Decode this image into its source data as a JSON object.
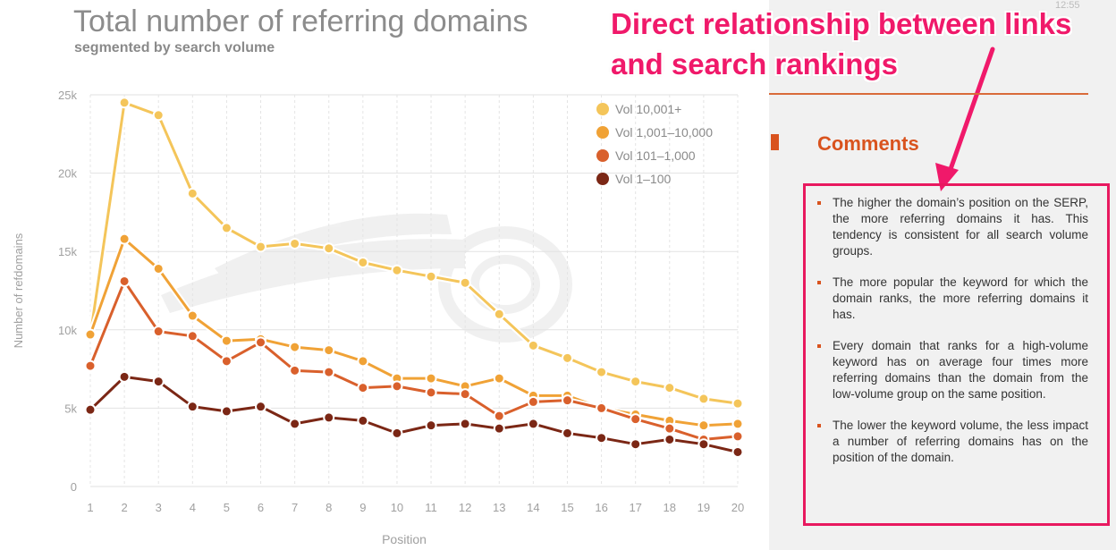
{
  "header": {
    "title": "Total number of referring domains",
    "subtitle": "segmented by search volume"
  },
  "annotation": {
    "headline_line1": "Direct relationship between links",
    "headline_line2": "and search rankings"
  },
  "status": {
    "time": "12:55"
  },
  "comments": {
    "title": "Comments",
    "items": [
      "The higher the domain’s position on the SERP, the more referring domains it has. This tendency is consistent for all search volume groups.",
      "The more popular the keyword for which the domain ranks, the more referring domains it has.",
      "Every domain that ranks for a high-volume keyword has on average four times more referring domains than the domain from the low-volume group on the same position.",
      "The lower the keyword volume, the less impact a number of referring domains has on the position of the domain."
    ]
  },
  "colors": {
    "accent": "#d9531e",
    "annotation": "#f0196a"
  },
  "chart_data": {
    "type": "line",
    "title": "Total number of referring domains",
    "subtitle": "segmented by search volume",
    "xlabel": "Position",
    "ylabel": "Number of refdomains",
    "x": [
      1,
      2,
      3,
      4,
      5,
      6,
      7,
      8,
      9,
      10,
      11,
      12,
      13,
      14,
      15,
      16,
      17,
      18,
      19,
      20
    ],
    "ylim": [
      0,
      25000
    ],
    "yticks": [
      0,
      5000,
      10000,
      15000,
      20000,
      25000
    ],
    "ytick_labels": [
      "0",
      "5k",
      "10k",
      "15k",
      "20k",
      "25k"
    ],
    "grid": true,
    "legend_position": "top-right",
    "series": [
      {
        "name": "Vol 10,001+",
        "color": "#f4c55a",
        "values": [
          9600,
          24500,
          23700,
          18700,
          16500,
          15300,
          15500,
          15200,
          14300,
          13800,
          13400,
          13000,
          11000,
          9000,
          8200,
          7300,
          6700,
          6300,
          5600,
          5300
        ]
      },
      {
        "name": "Vol 1,001–10,000",
        "color": "#f0a236",
        "values": [
          9700,
          15800,
          13900,
          10900,
          9300,
          9400,
          8900,
          8700,
          8000,
          6900,
          6900,
          6400,
          6900,
          5800,
          5800,
          5000,
          4600,
          4200,
          3900,
          4000
        ]
      },
      {
        "name": "Vol 101–1,000",
        "color": "#d9602c",
        "values": [
          7700,
          13100,
          9900,
          9600,
          8000,
          9200,
          7400,
          7300,
          6300,
          6400,
          6000,
          5900,
          4500,
          5400,
          5500,
          5000,
          4300,
          3700,
          3000,
          3200
        ]
      },
      {
        "name": "Vol 1–100",
        "color": "#7b2715",
        "values": [
          4900,
          7000,
          6700,
          5100,
          4800,
          5100,
          4000,
          4400,
          4200,
          3400,
          3900,
          4000,
          3700,
          4000,
          3400,
          3100,
          2700,
          3000,
          2700,
          2200
        ]
      }
    ]
  }
}
